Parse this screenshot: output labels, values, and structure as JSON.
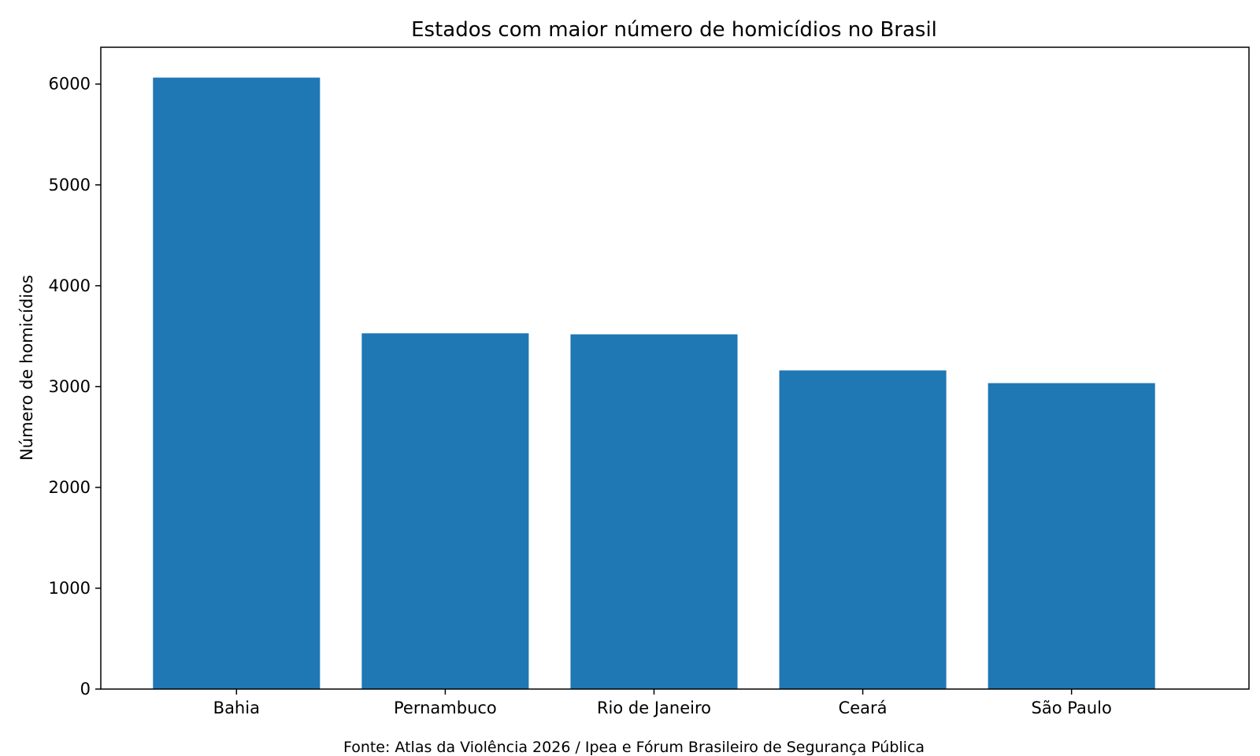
{
  "chart_data": {
    "type": "bar",
    "title": "Estados com maior número de homicídios no Brasil",
    "xlabel": "",
    "ylabel": "Número de homicídios",
    "categories": [
      "Bahia",
      "Pernambuco",
      "Rio de Janeiro",
      "Ceará",
      "São Paulo"
    ],
    "values": [
      6064,
      3528,
      3518,
      3160,
      3034
    ],
    "ylim": [
      0,
      6365
    ],
    "yticks": [
      0,
      1000,
      2000,
      3000,
      4000,
      5000,
      6000
    ],
    "grid": false,
    "legend": "none",
    "bar_color": "#1f77b4",
    "source_note": "Fonte: Atlas da Violência 2026 / Ipea e Fórum Brasileiro de Segurança Pública"
  }
}
